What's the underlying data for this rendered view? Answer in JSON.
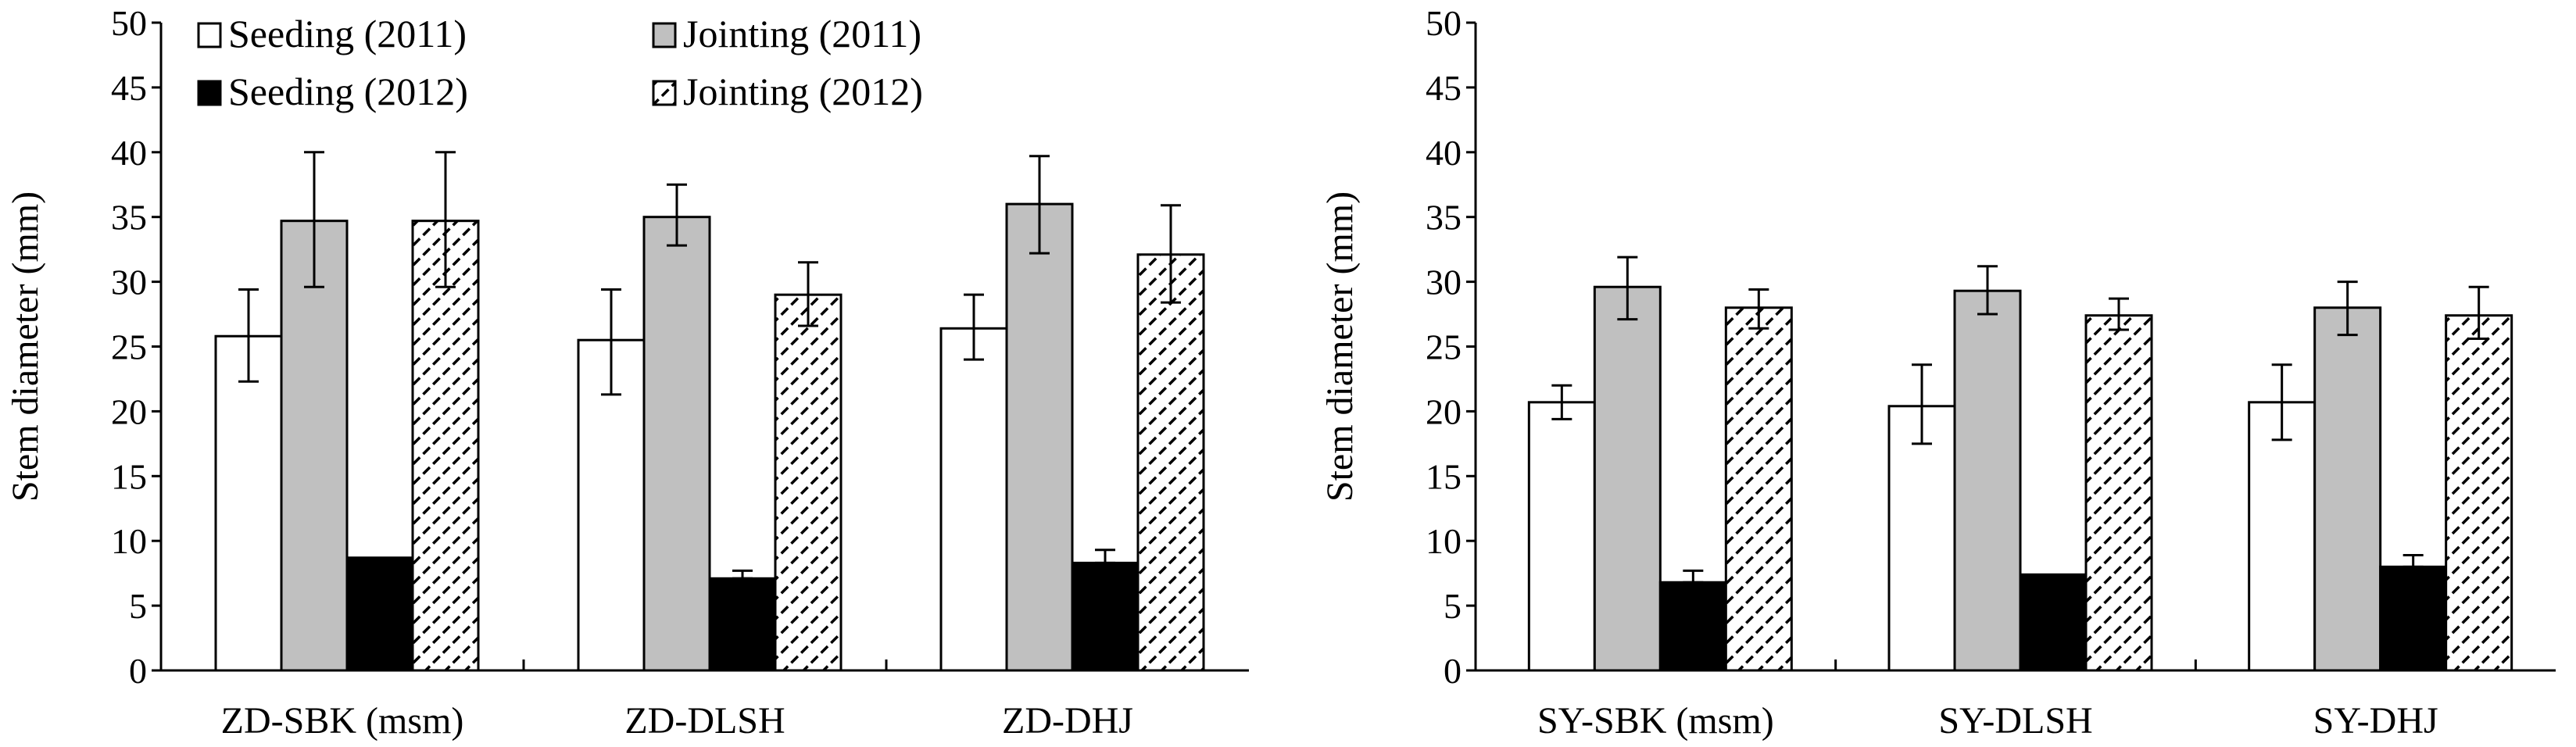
{
  "chart_data": [
    {
      "type": "bar",
      "title": "",
      "ylabel": "Stem diameter (mm)",
      "xlabel": "",
      "ylim": [
        0,
        50
      ],
      "yticks": [
        "0",
        "5",
        "10",
        "15",
        "20",
        "25",
        "30",
        "35",
        "40",
        "45",
        "50"
      ],
      "categories": [
        "ZD-SBK (msm)",
        "ZD-DLSH",
        "ZD-DHJ"
      ],
      "legend_position": "top-left",
      "series": [
        {
          "name": "Seeding (2011)",
          "fill": "white",
          "values": [
            25.8,
            25.5,
            26.4
          ],
          "err_low": [
            22.3,
            21.3,
            24.0
          ],
          "err_high": [
            29.4,
            29.4,
            29.0
          ]
        },
        {
          "name": "Jointing (2011)",
          "fill": "gray",
          "values": [
            34.7,
            35.0,
            36.0
          ],
          "err_low": [
            29.6,
            32.8,
            32.2
          ],
          "err_high": [
            40.0,
            37.5,
            39.7
          ]
        },
        {
          "name": "Seeding (2012)",
          "fill": "black",
          "values": [
            8.7,
            7.1,
            8.3
          ],
          "err_low": [
            null,
            7.1,
            8.3
          ],
          "err_high": [
            null,
            7.7,
            9.3
          ]
        },
        {
          "name": "Jointing (2012)",
          "fill": "hatched",
          "values": [
            34.7,
            29.0,
            32.1
          ],
          "err_low": [
            29.6,
            26.6,
            28.4
          ],
          "err_high": [
            40.0,
            31.5,
            35.9
          ]
        }
      ]
    },
    {
      "type": "bar",
      "title": "",
      "ylabel": "Stem diameter (mm)",
      "xlabel": "",
      "ylim": [
        0,
        50
      ],
      "yticks": [
        "0",
        "5",
        "10",
        "15",
        "20",
        "25",
        "30",
        "35",
        "40",
        "45",
        "50"
      ],
      "categories": [
        "SY-SBK (msm)",
        "SY-DLSH",
        "SY-DHJ"
      ],
      "series": [
        {
          "name": "Seeding (2011)",
          "fill": "white",
          "values": [
            20.7,
            20.4,
            20.7
          ],
          "err_low": [
            19.4,
            17.5,
            17.8
          ],
          "err_high": [
            22.0,
            23.6,
            23.6
          ]
        },
        {
          "name": "Jointing (2011)",
          "fill": "gray",
          "values": [
            29.6,
            29.3,
            28.0
          ],
          "err_low": [
            27.1,
            27.5,
            25.9
          ],
          "err_high": [
            31.9,
            31.2,
            30.0
          ]
        },
        {
          "name": "Seeding (2012)",
          "fill": "black",
          "values": [
            6.8,
            7.4,
            8.0
          ],
          "err_low": [
            6.8,
            null,
            8.0
          ],
          "err_high": [
            7.7,
            null,
            8.9
          ]
        },
        {
          "name": "Jointing (2012)",
          "fill": "hatched",
          "values": [
            28.0,
            27.4,
            27.4
          ],
          "err_low": [
            26.4,
            26.3,
            25.6
          ],
          "err_high": [
            29.4,
            28.7,
            29.6
          ]
        }
      ]
    }
  ],
  "colors": {
    "gray": "#c0c0c0",
    "black": "#000000",
    "white": "#ffffff"
  }
}
